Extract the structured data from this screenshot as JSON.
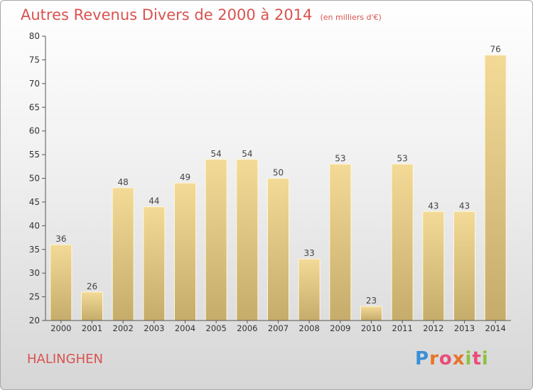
{
  "header": {
    "title": "Autres Revenus Divers de 2000 à 2014",
    "subtitle": "(en milliers d'€)"
  },
  "footer": {
    "commune": "HALINGHEN",
    "logo_text": "Proxiti"
  },
  "colors": {
    "title": "#d9534f",
    "bar_top": "#f3da97",
    "bar_bottom": "#c6ac6b",
    "axis": "#555555"
  },
  "chart_data": {
    "type": "bar",
    "categories": [
      "2000",
      "2001",
      "2002",
      "2003",
      "2004",
      "2005",
      "2006",
      "2007",
      "2008",
      "2009",
      "2010",
      "2011",
      "2012",
      "2013",
      "2014"
    ],
    "values": [
      36,
      26,
      48,
      44,
      49,
      54,
      54,
      50,
      33,
      53,
      23,
      53,
      43,
      43,
      76
    ],
    "ylim": [
      20,
      80
    ],
    "yticks": [
      20,
      25,
      30,
      35,
      40,
      45,
      50,
      55,
      60,
      65,
      70,
      75,
      80
    ],
    "grid": false,
    "legend": "none"
  }
}
